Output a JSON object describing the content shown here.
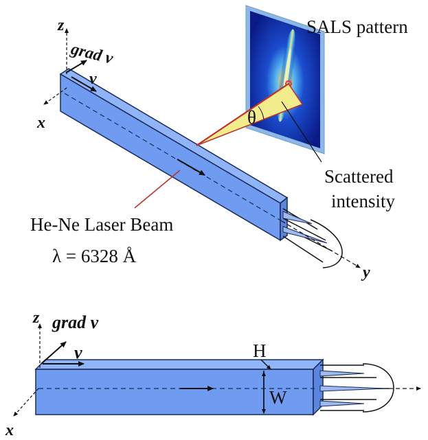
{
  "top_figure": {
    "axis_z": "z",
    "axis_x": "x",
    "axis_y": "y",
    "grad_v": "grad v",
    "v": "v",
    "theta": "θ",
    "sals_label": "SALS pattern",
    "scattered_line1": "Scattered",
    "scattered_line2": "intensity",
    "laser_line1": "He-Ne Laser Beam",
    "laser_line2": "λ = 6328 Å"
  },
  "bottom_figure": {
    "axis_z": "z",
    "axis_x": "x",
    "grad_v": "grad v",
    "v": "v",
    "H": "H",
    "W": "W"
  },
  "colors": {
    "channel_front": "#6f9bf0",
    "channel_top": "#8fb4f7",
    "channel_end": "#5a86e0",
    "beam_fill": "#f3ec8c",
    "laser_line": "#c0302a",
    "screen_frame": "#a9c7ea",
    "screen_dark": "#0a1a86"
  }
}
